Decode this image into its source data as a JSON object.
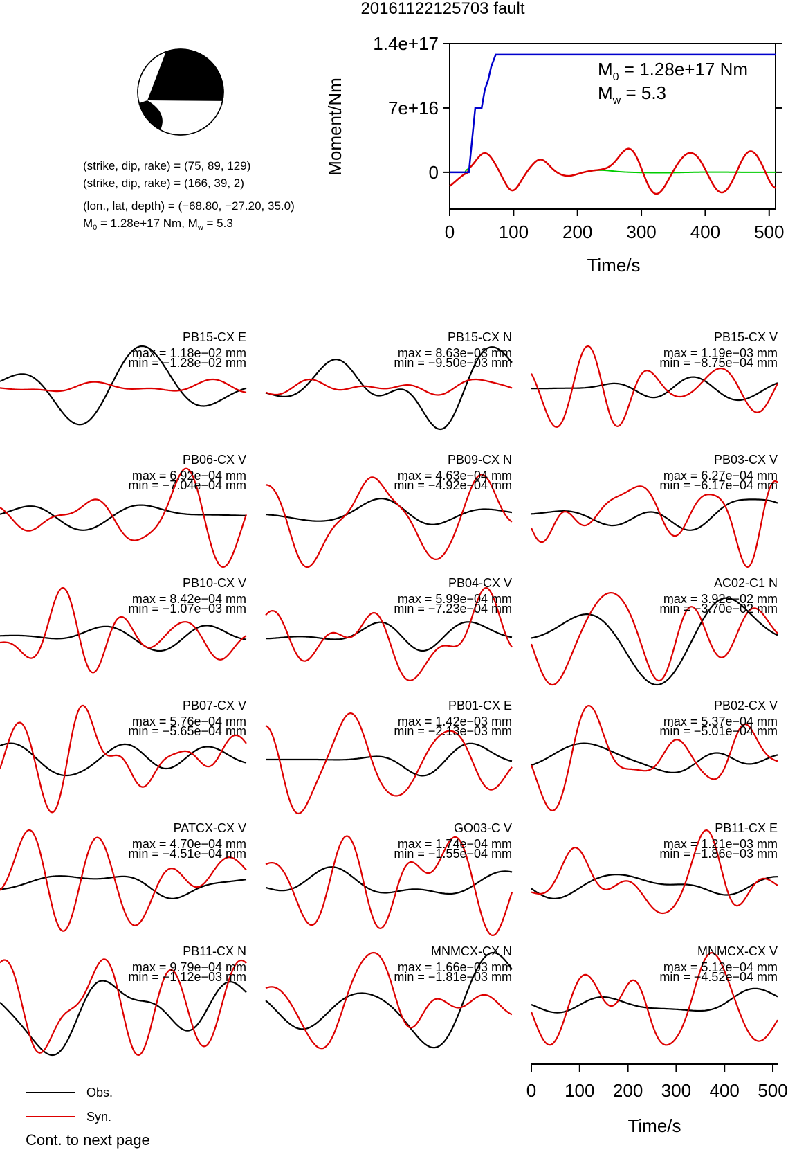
{
  "title": "20161122125703 fault",
  "colors": {
    "obs": "#000000",
    "syn": "#dd0000",
    "stf_moment": "#0000cc",
    "stf_rate_obs": "#00cc00",
    "stf_rate_syn": "#dd0000",
    "beach_fill": "#000000"
  },
  "source": {
    "line1": "(strike, dip, rake) = (75, 89, 129)",
    "line2": "(strike, dip, rake) = (166, 39, 2)",
    "line3": "(lon., lat, depth) = (−68.80, −27.20, 35.0)",
    "line4_m0": "M",
    "line4_sub0": "0",
    "line4_mid": " = 1.28e+17 Nm, M",
    "line4_subw": "w",
    "line4_end": " = 5.3"
  },
  "moment_panel": {
    "ylabel": "Moment/Nm",
    "xlabel": "Time/s",
    "m0_label": "M",
    "m0_sub": "0",
    "m0_value": " = 1.28e+17 Nm",
    "mw_label": "M",
    "mw_sub": "w",
    "mw_value": " = 5.3"
  },
  "legend": {
    "obs": "Obs.",
    "syn": "Syn."
  },
  "waveform_axis": {
    "xlabel": "Time/s"
  },
  "footer": "Cont. to next page",
  "chart_data": [
    {
      "type": "line",
      "name": "moment-function",
      "xlabel": "Time/s",
      "ylabel": "Moment/Nm",
      "xlim": [
        0,
        510
      ],
      "ylim": [
        -40000000000000000,
        140000000000000000
      ],
      "x_ticks": [
        0,
        100,
        200,
        300,
        400,
        500
      ],
      "x_tick_labels": [
        "0",
        "100",
        "200",
        "300",
        "400",
        "500"
      ],
      "y_ticks": [
        0,
        70000000000000000,
        140000000000000000
      ],
      "y_tick_labels": [
        "0",
        "7e+16",
        "1.4e+17"
      ],
      "cumulative_moment": {
        "x": [
          0,
          30,
          40,
          43,
          50,
          55,
          60,
          65,
          72,
          510
        ],
        "y": [
          0,
          0,
          70000000000000000,
          70000000000000000,
          70000000000000000,
          90000000000000000,
          100000000000000000,
          115000000000000000,
          128000000000000000,
          128000000000000000
        ]
      },
      "rate_curves": "scaled for display, shape-only (obs green, syn red)"
    },
    {
      "type": "line",
      "name": "waveform-time-axis",
      "xlabel": "Time/s",
      "xlim": [
        0,
        510
      ],
      "x_ticks": [
        0,
        100,
        200,
        300,
        400,
        500
      ],
      "x_tick_labels": [
        "0",
        "100",
        "200",
        "300",
        "400",
        "500"
      ]
    }
  ],
  "stations": [
    {
      "name": "PB15-CX E",
      "max": "max = 1.18e−02 mm",
      "min": "min = −1.28e−02 mm"
    },
    {
      "name": "PB15-CX N",
      "max": "max = 8.63e−03 mm",
      "min": "min = −9.50e−03 mm"
    },
    {
      "name": "PB15-CX V",
      "max": "max = 1.19e−03 mm",
      "min": "min = −8.75e−04 mm"
    },
    {
      "name": "PB06-CX V",
      "max": "max = 6.92e−04 mm",
      "min": "min = −7.04e−04 mm"
    },
    {
      "name": "PB09-CX N",
      "max": "max = 4.63e−04 mm",
      "min": "min = −4.92e−04 mm"
    },
    {
      "name": "PB03-CX V",
      "max": "max = 6.27e−04 mm",
      "min": "min = −6.17e−04 mm"
    },
    {
      "name": "PB10-CX V",
      "max": "max = 8.42e−04 mm",
      "min": "min = −1.07e−03 mm"
    },
    {
      "name": "PB04-CX V",
      "max": "max = 5.99e−04 mm",
      "min": "min = −7.23e−04 mm"
    },
    {
      "name": "AC02-C1 N",
      "max": "max = 3.92e−02 mm",
      "min": "min = −3.70e−02 mm"
    },
    {
      "name": "PB07-CX V",
      "max": "max = 5.76e−04 mm",
      "min": "min = −5.65e−04 mm"
    },
    {
      "name": "PB01-CX E",
      "max": "max = 1.42e−03 mm",
      "min": "min = −2.13e−03 mm"
    },
    {
      "name": "PB02-CX V",
      "max": "max = 5.37e−04 mm",
      "min": "min = −5.01e−04 mm"
    },
    {
      "name": "PATCX-CX V",
      "max": "max = 4.70e−04 mm",
      "min": "min = −4.51e−04 mm"
    },
    {
      "name": "GO03-C V",
      "max": "max = 1.74e−04 mm",
      "min": "min = −1.55e−04 mm"
    },
    {
      "name": "PB11-CX E",
      "max": "max = 1.21e−03 mm",
      "min": "min = −1.86e−03 mm"
    },
    {
      "name": "PB11-CX N",
      "max": "max = 9.79e−04 mm",
      "min": "min = −1.12e−03 mm"
    },
    {
      "name": "MNMCX-CX N",
      "max": "max = 1.66e−03 mm",
      "min": "min = −1.81e−03 mm"
    },
    {
      "name": "MNMCX-CX V",
      "max": "max = 5.12e−04 mm",
      "min": "min = −4.52e−04 mm"
    }
  ]
}
